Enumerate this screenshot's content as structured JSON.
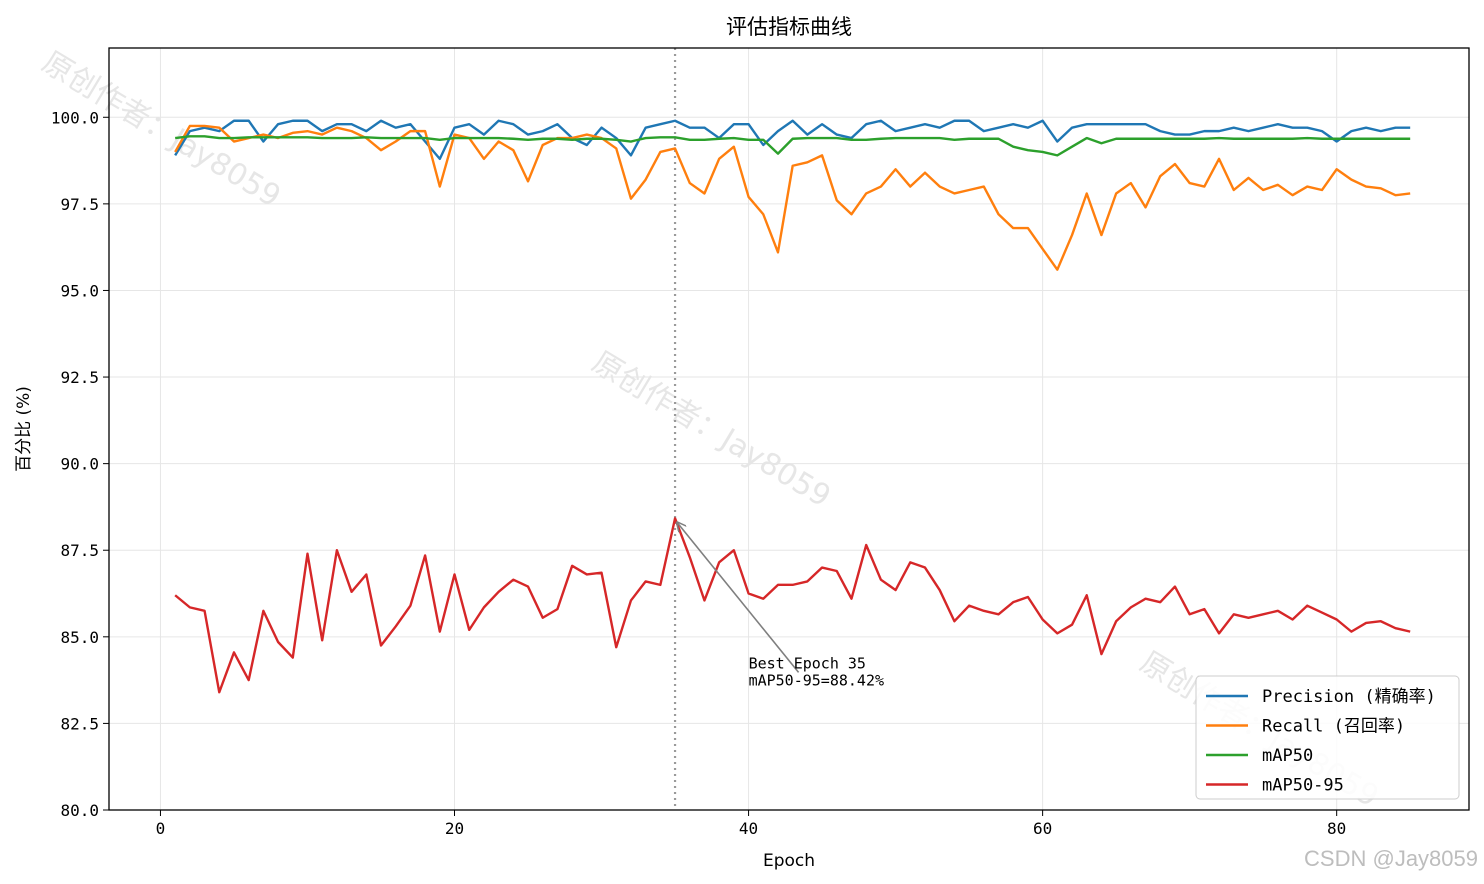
{
  "chart_data": {
    "type": "line",
    "title": "评估指标曲线",
    "xlabel": "Epoch",
    "ylabel": "百分比 (%)",
    "xlim": [
      -3.5,
      89
    ],
    "ylim": [
      80,
      102
    ],
    "xticks": [
      0,
      20,
      40,
      60,
      80
    ],
    "yticks": [
      80.0,
      82.5,
      85.0,
      87.5,
      90.0,
      92.5,
      95.0,
      97.5,
      100.0
    ],
    "grid": true,
    "legend_position": "lower-right",
    "best_epoch_line": 35,
    "annotation": {
      "line1": "Best Epoch 35",
      "line2": "mAP50-95=88.42%",
      "point": [
        35,
        88.42
      ],
      "text_at": [
        40,
        83.8
      ]
    },
    "watermark": "原创作者：Jay8059",
    "credit": "CSDN @Jay8059",
    "x": [
      1,
      2,
      3,
      4,
      5,
      6,
      7,
      8,
      9,
      10,
      11,
      12,
      13,
      14,
      15,
      16,
      17,
      18,
      19,
      20,
      21,
      22,
      23,
      24,
      25,
      26,
      27,
      28,
      29,
      30,
      31,
      32,
      33,
      34,
      35,
      36,
      37,
      38,
      39,
      40,
      41,
      42,
      43,
      44,
      45,
      46,
      47,
      48,
      49,
      50,
      51,
      52,
      53,
      54,
      55,
      56,
      57,
      58,
      59,
      60,
      61,
      62,
      63,
      64,
      65,
      66,
      67,
      68,
      69,
      70,
      71,
      72,
      73,
      74,
      75,
      76,
      77,
      78,
      79,
      80,
      81,
      82,
      83,
      84,
      85
    ],
    "series": [
      {
        "name": "Precision (精确率)",
        "color": "#1f77b4",
        "values": [
          98.9,
          99.6,
          99.7,
          99.6,
          99.9,
          99.9,
          99.3,
          99.8,
          99.9,
          99.9,
          99.6,
          99.8,
          99.8,
          99.6,
          99.9,
          99.7,
          99.8,
          99.3,
          98.8,
          99.7,
          99.8,
          99.5,
          99.9,
          99.8,
          99.5,
          99.6,
          99.8,
          99.4,
          99.2,
          99.7,
          99.4,
          98.9,
          99.7,
          99.8,
          99.9,
          99.7,
          99.7,
          99.4,
          99.8,
          99.8,
          99.2,
          99.6,
          99.9,
          99.5,
          99.8,
          99.5,
          99.4,
          99.8,
          99.9,
          99.6,
          99.7,
          99.8,
          99.7,
          99.9,
          99.9,
          99.6,
          99.7,
          99.8,
          99.7,
          99.9,
          99.3,
          99.7,
          99.8,
          99.8,
          99.8,
          99.8,
          99.8,
          99.6,
          99.5,
          99.5,
          99.6,
          99.6,
          99.7,
          99.6,
          99.7,
          99.8,
          99.7,
          99.7,
          99.6,
          99.3,
          99.6,
          99.7,
          99.6,
          99.7,
          99.7
        ]
      },
      {
        "name": "Recall (召回率)",
        "color": "#ff7f0e",
        "values": [
          99.0,
          99.75,
          99.75,
          99.7,
          99.3,
          99.4,
          99.5,
          99.4,
          99.55,
          99.6,
          99.5,
          99.7,
          99.6,
          99.4,
          99.05,
          99.3,
          99.6,
          99.6,
          98.0,
          99.5,
          99.4,
          98.8,
          99.3,
          99.05,
          98.15,
          99.2,
          99.4,
          99.4,
          99.5,
          99.4,
          99.1,
          97.65,
          98.2,
          99.0,
          99.1,
          98.1,
          97.8,
          98.8,
          99.15,
          97.7,
          97.2,
          96.1,
          98.6,
          98.7,
          98.9,
          97.6,
          97.2,
          97.8,
          98.0,
          98.5,
          98.0,
          98.4,
          98.0,
          97.8,
          97.9,
          98.0,
          97.2,
          96.8,
          96.8,
          96.2,
          95.6,
          96.6,
          97.8,
          96.6,
          97.8,
          98.1,
          97.4,
          98.3,
          98.65,
          98.1,
          98.0,
          98.8,
          97.9,
          98.25,
          97.9,
          98.05,
          97.75,
          98.0,
          97.9,
          98.5,
          98.2,
          98.0,
          97.95,
          97.75,
          97.8
        ]
      },
      {
        "name": "mAP50",
        "color": "#2ca02c",
        "values": [
          99.4,
          99.45,
          99.45,
          99.4,
          99.4,
          99.42,
          99.42,
          99.42,
          99.42,
          99.42,
          99.4,
          99.4,
          99.4,
          99.42,
          99.4,
          99.4,
          99.4,
          99.4,
          99.35,
          99.4,
          99.4,
          99.4,
          99.4,
          99.38,
          99.35,
          99.38,
          99.38,
          99.35,
          99.38,
          99.38,
          99.35,
          99.3,
          99.4,
          99.42,
          99.42,
          99.35,
          99.35,
          99.38,
          99.4,
          99.35,
          99.35,
          98.95,
          99.38,
          99.4,
          99.4,
          99.4,
          99.35,
          99.35,
          99.38,
          99.4,
          99.4,
          99.4,
          99.4,
          99.35,
          99.38,
          99.38,
          99.38,
          99.15,
          99.05,
          99.0,
          98.9,
          99.15,
          99.4,
          99.25,
          99.38,
          99.38,
          99.38,
          99.38,
          99.38,
          99.38,
          99.38,
          99.4,
          99.38,
          99.38,
          99.38,
          99.38,
          99.38,
          99.4,
          99.38,
          99.38,
          99.38,
          99.38,
          99.38,
          99.38,
          99.38
        ]
      },
      {
        "name": "mAP50-95",
        "color": "#d62728",
        "values": [
          86.2,
          85.85,
          85.75,
          83.4,
          84.55,
          83.75,
          85.75,
          84.85,
          84.4,
          87.4,
          84.9,
          87.5,
          86.3,
          86.8,
          84.75,
          85.3,
          85.9,
          87.35,
          85.15,
          86.8,
          85.2,
          85.85,
          86.3,
          86.65,
          86.45,
          85.55,
          85.8,
          87.05,
          86.8,
          86.85,
          84.7,
          86.05,
          86.6,
          86.5,
          88.42,
          87.3,
          86.05,
          87.15,
          87.5,
          86.25,
          86.1,
          86.5,
          86.5,
          86.6,
          87.0,
          86.9,
          86.1,
          87.65,
          86.65,
          86.35,
          87.15,
          87.0,
          86.35,
          85.45,
          85.9,
          85.75,
          85.65,
          86.0,
          86.15,
          85.5,
          85.1,
          85.35,
          86.2,
          84.5,
          85.45,
          85.85,
          86.1,
          86.0,
          86.45,
          85.65,
          85.8,
          85.1,
          85.65,
          85.55,
          85.65,
          85.75,
          85.5,
          85.9,
          85.7,
          85.5,
          85.15,
          85.4,
          85.45,
          85.25,
          85.15
        ]
      }
    ]
  }
}
